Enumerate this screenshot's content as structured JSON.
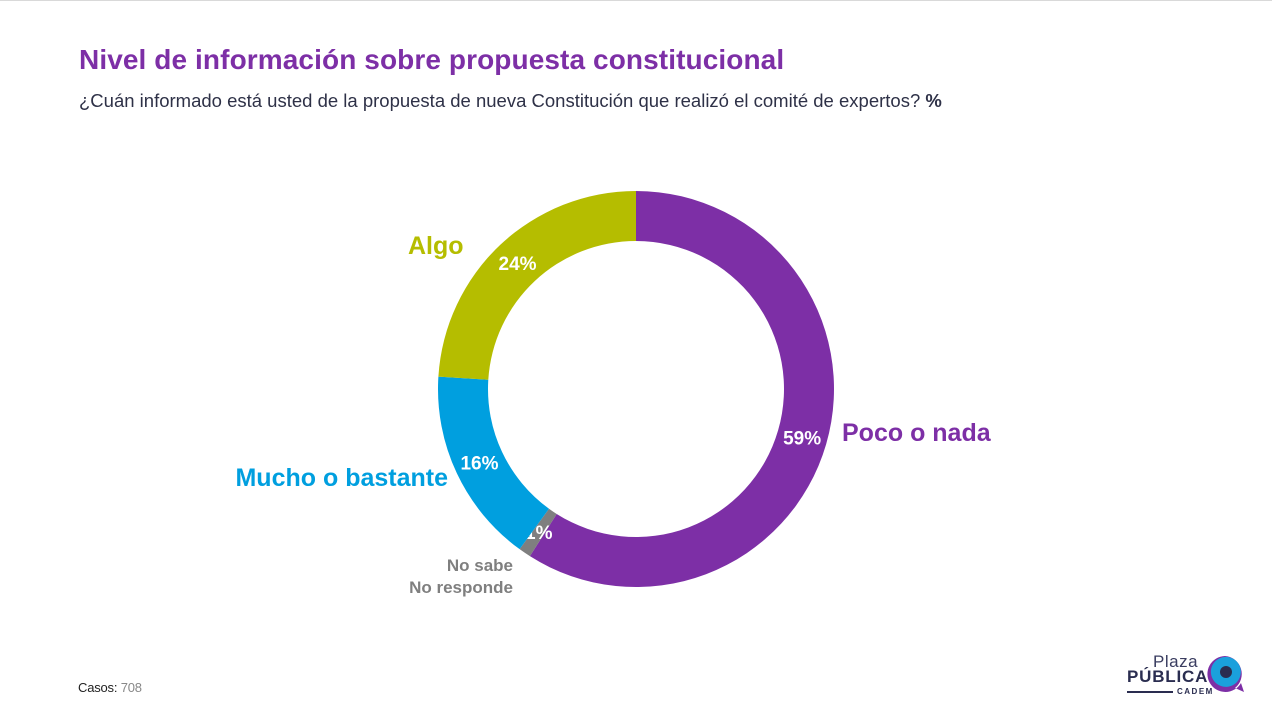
{
  "header": {
    "title": "Nivel de información sobre propuesta constitucional",
    "subtitle": "¿Cuán informado está usted de la propuesta de nueva Constitución que realizó el comité de expertos?",
    "subtitle_unit": "%"
  },
  "chart_data": {
    "type": "pie",
    "variant": "donut",
    "title": "Nivel de información sobre propuesta constitucional",
    "slices": [
      {
        "label": "Poco o nada",
        "value": 59,
        "value_label": "59%",
        "color": "#7d2fa6",
        "label_color": "#7d2fa6"
      },
      {
        "label": "No sabe No responde",
        "label_lines": [
          "No sabe",
          "No responde"
        ],
        "value": 1,
        "value_label": "1%",
        "color": "#7f7f7f",
        "label_color": "#7f7f7f"
      },
      {
        "label": "Mucho o bastante",
        "value": 16,
        "value_label": "16%",
        "color": "#009fdf",
        "label_color": "#009fdf"
      },
      {
        "label": "Algo",
        "value": 24,
        "value_label": "24%",
        "color": "#b5bd00",
        "label_color": "#b5bd00"
      }
    ],
    "legend": "none"
  },
  "footer": {
    "cases_label": "Casos",
    "cases_value": "708"
  },
  "logo": {
    "line1": "Plaza",
    "line2": "PÚBLICA",
    "line3": "CADEM",
    "colors": {
      "navy": "#2a2d50",
      "blue": "#1aa0dc",
      "purple": "#7d2fa6"
    }
  }
}
